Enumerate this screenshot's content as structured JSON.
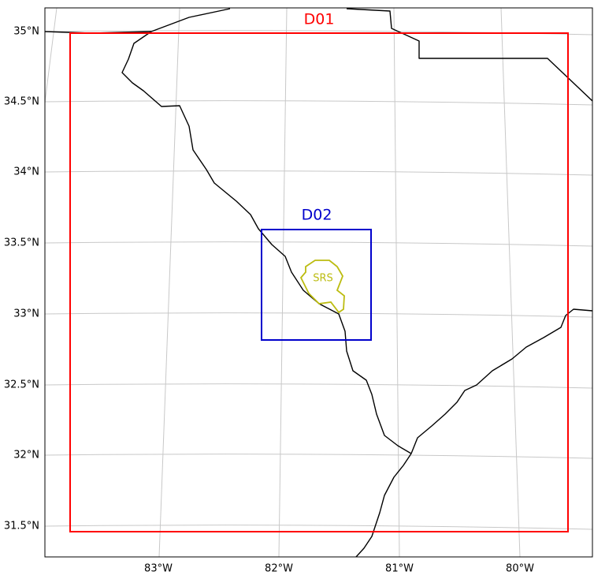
{
  "map": {
    "lat_labels": [
      "35°N",
      "34.5°N",
      "34°N",
      "33.5°N",
      "33°N",
      "32.5°N",
      "32°N",
      "31.5°N"
    ],
    "lon_labels": [
      "83°W",
      "82°W",
      "81°W",
      "80°W"
    ],
    "domains": [
      {
        "label": "D01"
      },
      {
        "label": "D02"
      }
    ],
    "site_label": "SRS"
  }
}
